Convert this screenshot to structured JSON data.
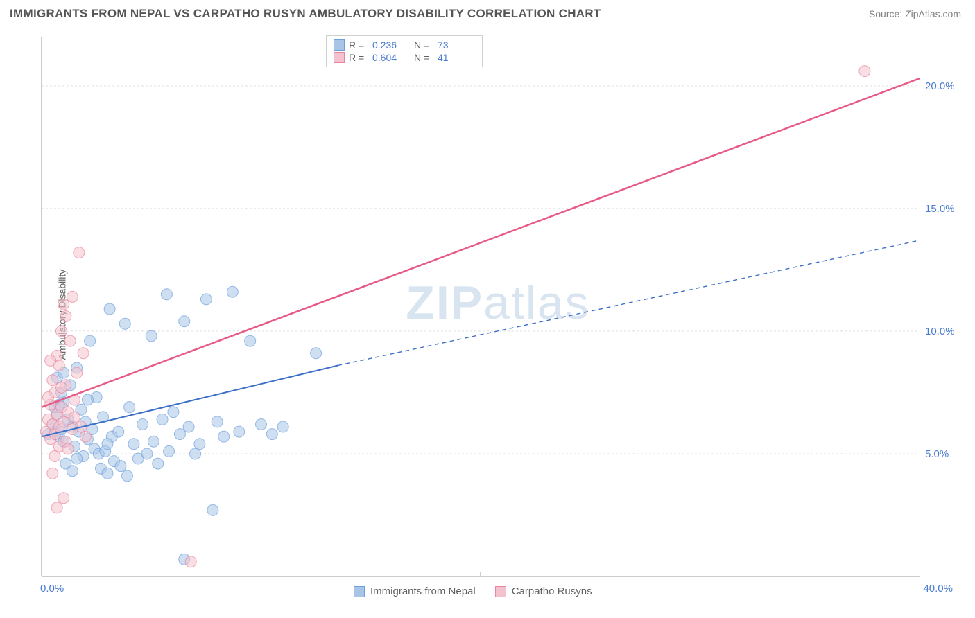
{
  "header": {
    "title": "IMMIGRANTS FROM NEPAL VS CARPATHO RUSYN AMBULATORY DISABILITY CORRELATION CHART",
    "source": "Source: ZipAtlas.com"
  },
  "chart": {
    "type": "scatter",
    "watermark": "ZIPatlas",
    "y_axis_label": "Ambulatory Disability",
    "xlim": [
      0,
      40
    ],
    "ylim": [
      0,
      22
    ],
    "x_ticks": [
      0,
      40
    ],
    "x_tick_labels": [
      "0.0%",
      "40.0%"
    ],
    "y_ticks": [
      5,
      10,
      15,
      20
    ],
    "y_tick_labels": [
      "5.0%",
      "10.0%",
      "15.0%",
      "20.0%"
    ],
    "grid_color": "#e0e0e0",
    "axis_color": "#999999",
    "background_color": "#ffffff",
    "tick_label_color": "#4a7bd0",
    "series": [
      {
        "name": "Immigrants from Nepal",
        "color_fill": "#a8c5e8",
        "color_stroke": "#6f9fdb",
        "marker_opacity": 0.55,
        "marker_radius": 8,
        "R": "0.236",
        "N": "73",
        "trend": {
          "x1": 0,
          "y1": 5.7,
          "x2": 13.5,
          "y2": 8.6,
          "x2_dash": 40,
          "y2_dash": 13.7,
          "stroke": "#3b6fc7",
          "width": 2
        },
        "points": [
          [
            0.3,
            5.8
          ],
          [
            0.5,
            6.2
          ],
          [
            0.6,
            5.9
          ],
          [
            0.7,
            6.6
          ],
          [
            0.8,
            5.7
          ],
          [
            0.9,
            6.0
          ],
          [
            1.0,
            7.1
          ],
          [
            1.0,
            5.5
          ],
          [
            1.2,
            6.4
          ],
          [
            1.3,
            7.8
          ],
          [
            1.4,
            6.1
          ],
          [
            1.5,
            5.3
          ],
          [
            1.6,
            8.5
          ],
          [
            1.7,
            5.9
          ],
          [
            1.8,
            6.8
          ],
          [
            1.9,
            4.9
          ],
          [
            2.0,
            6.3
          ],
          [
            2.1,
            5.6
          ],
          [
            2.2,
            9.6
          ],
          [
            2.3,
            6.0
          ],
          [
            2.4,
            5.2
          ],
          [
            2.5,
            7.3
          ],
          [
            2.6,
            5.0
          ],
          [
            2.7,
            4.4
          ],
          [
            2.8,
            6.5
          ],
          [
            2.9,
            5.1
          ],
          [
            3.0,
            4.2
          ],
          [
            3.1,
            10.9
          ],
          [
            3.2,
            5.7
          ],
          [
            3.3,
            4.7
          ],
          [
            3.5,
            5.9
          ],
          [
            3.6,
            4.5
          ],
          [
            3.8,
            10.3
          ],
          [
            3.9,
            4.1
          ],
          [
            4.0,
            6.9
          ],
          [
            4.2,
            5.4
          ],
          [
            4.4,
            4.8
          ],
          [
            4.6,
            6.2
          ],
          [
            4.8,
            5.0
          ],
          [
            5.0,
            9.8
          ],
          [
            5.1,
            5.5
          ],
          [
            5.3,
            4.6
          ],
          [
            5.5,
            6.4
          ],
          [
            5.7,
            11.5
          ],
          [
            5.8,
            5.1
          ],
          [
            6.0,
            6.7
          ],
          [
            6.3,
            5.8
          ],
          [
            6.5,
            10.4
          ],
          [
            6.7,
            6.1
          ],
          [
            7.0,
            5.0
          ],
          [
            7.2,
            5.4
          ],
          [
            7.5,
            11.3
          ],
          [
            7.8,
            2.7
          ],
          [
            8.0,
            6.3
          ],
          [
            8.3,
            5.7
          ],
          [
            8.7,
            11.6
          ],
          [
            9.0,
            5.9
          ],
          [
            9.5,
            9.6
          ],
          [
            10.0,
            6.2
          ],
          [
            10.5,
            5.8
          ],
          [
            11.0,
            6.1
          ],
          [
            12.5,
            9.1
          ],
          [
            6.5,
            0.7
          ],
          [
            1.1,
            4.6
          ],
          [
            1.4,
            4.3
          ],
          [
            0.9,
            7.5
          ],
          [
            0.7,
            8.1
          ],
          [
            0.6,
            6.9
          ],
          [
            2.1,
            7.2
          ],
          [
            1.6,
            4.8
          ],
          [
            3.0,
            5.4
          ],
          [
            1.0,
            8.3
          ],
          [
            0.8,
            7.0
          ]
        ]
      },
      {
        "name": "Carpatho Rusyns",
        "color_fill": "#f4c2ce",
        "color_stroke": "#e8859f",
        "marker_opacity": 0.55,
        "marker_radius": 8,
        "R": "0.604",
        "N": "41",
        "trend": {
          "x1": 0,
          "y1": 6.9,
          "x2": 40,
          "y2": 20.3,
          "stroke": "#e65a85",
          "width": 2.5
        },
        "points": [
          [
            0.2,
            5.9
          ],
          [
            0.3,
            6.4
          ],
          [
            0.4,
            5.6
          ],
          [
            0.4,
            7.0
          ],
          [
            0.5,
            6.2
          ],
          [
            0.5,
            8.0
          ],
          [
            0.6,
            5.8
          ],
          [
            0.6,
            7.5
          ],
          [
            0.7,
            6.6
          ],
          [
            0.7,
            9.0
          ],
          [
            0.8,
            6.1
          ],
          [
            0.8,
            8.6
          ],
          [
            0.9,
            6.9
          ],
          [
            0.9,
            10.0
          ],
          [
            1.0,
            6.3
          ],
          [
            1.0,
            11.1
          ],
          [
            1.1,
            5.5
          ],
          [
            1.1,
            7.8
          ],
          [
            1.2,
            6.7
          ],
          [
            1.3,
            9.6
          ],
          [
            1.4,
            6.0
          ],
          [
            1.4,
            11.4
          ],
          [
            1.5,
            6.5
          ],
          [
            1.6,
            8.3
          ],
          [
            1.7,
            13.2
          ],
          [
            1.8,
            6.1
          ],
          [
            1.9,
            9.1
          ],
          [
            2.0,
            5.7
          ],
          [
            0.6,
            4.9
          ],
          [
            0.5,
            4.2
          ],
          [
            0.3,
            7.3
          ],
          [
            0.4,
            8.8
          ],
          [
            0.8,
            5.3
          ],
          [
            1.2,
            5.2
          ],
          [
            1.1,
            10.6
          ],
          [
            0.9,
            7.7
          ],
          [
            6.8,
            0.6
          ],
          [
            0.7,
            2.8
          ],
          [
            1.0,
            3.2
          ],
          [
            37.5,
            20.6
          ],
          [
            1.5,
            7.2
          ]
        ]
      }
    ],
    "legend_top": [
      {
        "swatch_fill": "#a8c5e8",
        "swatch_stroke": "#6f9fdb",
        "r_label": "R =",
        "r_value": "0.236",
        "n_label": "N =",
        "n_value": "73"
      },
      {
        "swatch_fill": "#f4c2ce",
        "swatch_stroke": "#e8859f",
        "r_label": "R =",
        "r_value": "0.604",
        "n_label": "N =",
        "n_value": "41"
      }
    ],
    "legend_bottom": [
      {
        "swatch_fill": "#a8c5e8",
        "swatch_stroke": "#6f9fdb",
        "label": "Immigrants from Nepal"
      },
      {
        "swatch_fill": "#f4c2ce",
        "swatch_stroke": "#e8859f",
        "label": "Carpatho Rusyns"
      }
    ]
  }
}
